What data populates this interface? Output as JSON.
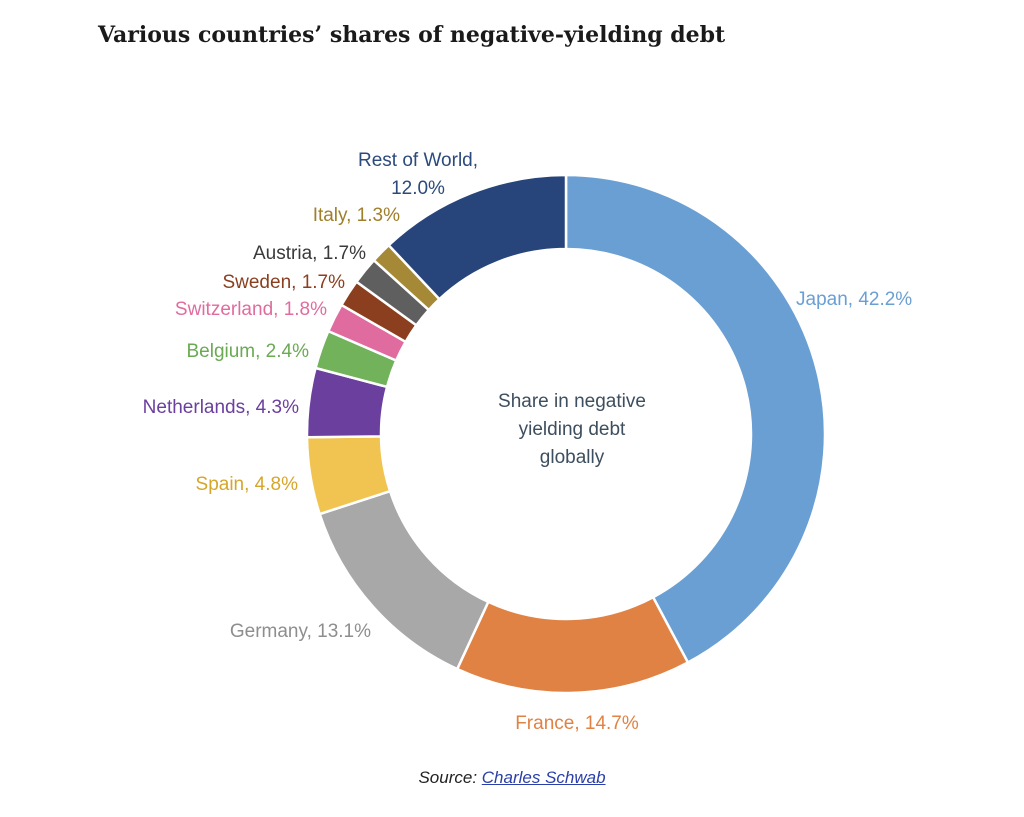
{
  "chart_data": {
    "type": "pie",
    "title": "Various countries’ shares of negative-yielding debt",
    "center_text": [
      "Share in negative",
      "yielding debt",
      "globally"
    ],
    "slices": [
      {
        "label": "Japan, 42.2%",
        "value": 42.2,
        "color": "#6a9fd4"
      },
      {
        "label": "France, 14.7%",
        "value": 14.7,
        "color": "#e08244"
      },
      {
        "label": "Germany, 13.1%",
        "value": 13.1,
        "color": "#a8a8a8"
      },
      {
        "label": "Spain, 4.8%",
        "value": 4.8,
        "color": "#f1c451"
      },
      {
        "label": "Netherlands, 4.3%",
        "value": 4.3,
        "color": "#6a3f9e"
      },
      {
        "label": "Belgium, 2.4%",
        "value": 2.4,
        "color": "#72b25a"
      },
      {
        "label": "Switzerland, 1.8%",
        "value": 1.8,
        "color": "#e06c9f"
      },
      {
        "label": "Sweden, 1.7%",
        "value": 1.7,
        "color": "#8b3f1f"
      },
      {
        "label": "Austria, 1.7%",
        "value": 1.7,
        "color": "#5f5f5f"
      },
      {
        "label": "Italy, 1.3%",
        "value": 1.3,
        "color": "#a68937"
      },
      {
        "label": "Rest of World, 12.0%",
        "value": 12.0,
        "color": "#27457a"
      }
    ]
  },
  "label_colors": {
    "Japan": "#6a9fd4",
    "France": "#e08244",
    "Germany": "#8e8e8e",
    "Spain": "#d6a62c",
    "Netherlands": "#6a3f9e",
    "Belgium": "#6aaa52",
    "Switzerland": "#e06c9f",
    "Sweden": "#8b3f1f",
    "Austria": "#3a3a3a",
    "Italy": "#a07f2a",
    "Rest of World": "#2c4a7c"
  },
  "source": {
    "prefix": "Source: ",
    "link_text": "Charles Schwab"
  }
}
